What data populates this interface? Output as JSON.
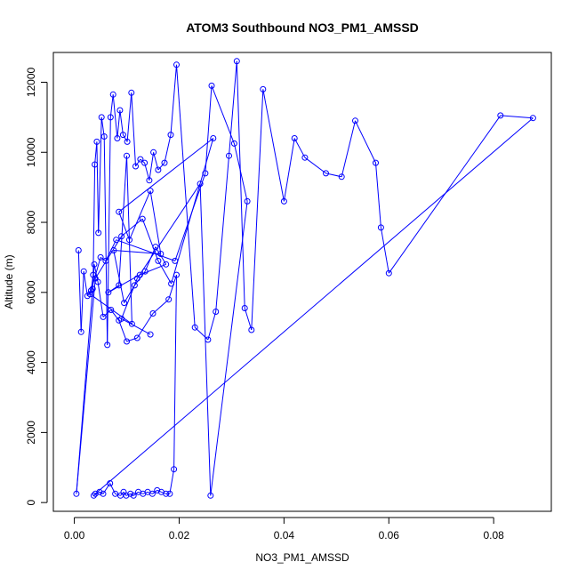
{
  "chart_data": {
    "type": "scatter",
    "title": "ATOM3 Southbound NO3_PM1_AMSSD",
    "xlabel": "NO3_PM1_AMSSD",
    "ylabel": "Altitude (m)",
    "xlim": [
      -0.004,
      0.091
    ],
    "ylim": [
      -250,
      12850
    ],
    "xticks": [
      0.0,
      0.02,
      0.04,
      0.06,
      0.08
    ],
    "xtick_labels": [
      "0.00",
      "0.02",
      "0.04",
      "0.06",
      "0.08"
    ],
    "yticks": [
      0,
      2000,
      4000,
      6000,
      8000,
      10000,
      12000
    ],
    "ytick_labels": [
      "0",
      "2000",
      "4000",
      "6000",
      "8000",
      "10000",
      "12000"
    ],
    "grid": false,
    "connect_points": true,
    "marker": "open-circle",
    "series": [
      {
        "color": "#0000ff",
        "x": [
          0.0008,
          0.0013,
          0.0018,
          0.0025,
          0.0032,
          0.0036,
          0.0039,
          0.0043,
          0.0046,
          0.0052,
          0.0057,
          0.0063,
          0.0069,
          0.0074,
          0.0082,
          0.0087,
          0.0093,
          0.0101,
          0.0109,
          0.0117,
          0.0126,
          0.0134,
          0.0143,
          0.0151,
          0.016,
          0.0172,
          0.0184,
          0.0195,
          0.023,
          0.0255,
          0.027,
          0.0295,
          0.031,
          0.0325,
          0.0338,
          0.036,
          0.04,
          0.042,
          0.044,
          0.048,
          0.051,
          0.0536,
          0.0575,
          0.0585,
          0.06,
          0.0813,
          0.0875,
          0.004,
          0.0037,
          0.0048,
          0.0055,
          0.0068,
          0.0078,
          0.0088,
          0.0094,
          0.0099,
          0.0107,
          0.0113,
          0.0122,
          0.0131,
          0.014,
          0.0149,
          0.0158,
          0.0166,
          0.0175,
          0.0182,
          0.019,
          0.0195,
          0.018,
          0.015,
          0.012,
          0.01,
          0.0085,
          0.007,
          0.0055,
          0.0045,
          0.0038,
          0.0035,
          0.0004,
          0.004,
          0.009,
          0.013,
          0.016,
          0.0185,
          0.0265,
          0.0085,
          0.0105,
          0.0145,
          0.0165,
          0.0075,
          0.0095,
          0.0115,
          0.0135,
          0.0155,
          0.0175,
          0.0125,
          0.0065,
          0.0085,
          0.01,
          0.011,
          0.003,
          0.005,
          0.006,
          0.008,
          0.0192,
          0.025,
          0.0262,
          0.0305,
          0.033,
          0.026,
          0.024,
          0.012,
          0.009,
          0.0145
        ],
        "y": [
          7200,
          4870,
          6600,
          5900,
          6050,
          6500,
          9650,
          10300,
          7700,
          11000,
          10450,
          4500,
          11000,
          11650,
          10400,
          11200,
          10500,
          10300,
          11700,
          9600,
          9800,
          9700,
          9200,
          10000,
          9500,
          9700,
          10500,
          12500,
          5000,
          4650,
          5450,
          9900,
          12600,
          5550,
          4930,
          11800,
          8600,
          10400,
          9850,
          9400,
          9300,
          10900,
          9700,
          7850,
          6550,
          11050,
          10980,
          250,
          200,
          300,
          250,
          550,
          250,
          200,
          300,
          200,
          250,
          200,
          300,
          250,
          300,
          250,
          350,
          300,
          250,
          250,
          950,
          6500,
          5800,
          5400,
          4700,
          4600,
          5200,
          5500,
          5300,
          6300,
          6800,
          6100,
          250,
          6400,
          7600,
          8100,
          6900,
          6250,
          10400,
          8300,
          7500,
          8900,
          7100,
          7200,
          5700,
          6200,
          6600,
          7300,
          6800,
          6500,
          6000,
          6200,
          9900,
          5100,
          5950,
          7000,
          6900,
          7500,
          6900,
          9400,
          11900,
          10250,
          8600,
          200,
          9100,
          6400,
          5250,
          4800
        ]
      }
    ]
  }
}
